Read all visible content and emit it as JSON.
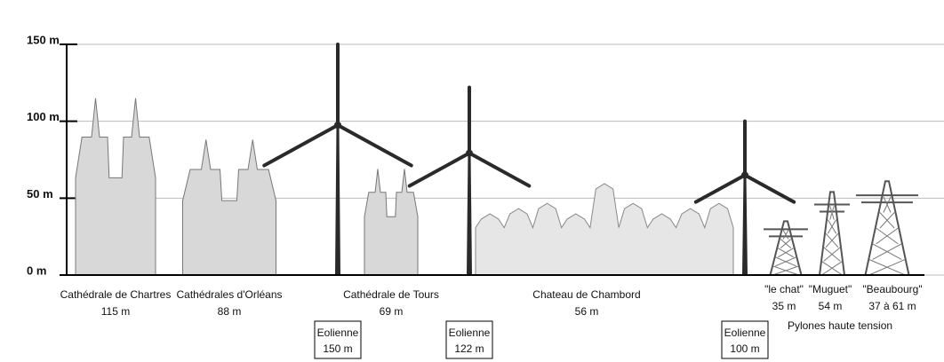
{
  "chart_data": {
    "type": "bar",
    "categories": [
      "Cathédrale de Chartres",
      "Cathédrales d'Orléans",
      "Eolienne",
      "Cathédrale  de Tours",
      "Eolienne",
      "Chateau de Chambord",
      "Eolienne",
      "\"le chat\"",
      "\"Muguet\"",
      "\"Beaubourg\""
    ],
    "values": [
      115,
      88,
      150,
      69,
      122,
      56,
      100,
      35,
      54,
      61
    ],
    "value_labels": [
      "115 m",
      "88 m",
      "150 m",
      "69 m",
      "122 m",
      "56 m",
      "100 m",
      "35 m",
      "54 m",
      "37 à 61 m"
    ],
    "group_label": "Pylones haute tension",
    "ylim": [
      0,
      150
    ],
    "yticks": [
      {
        "value": 0,
        "label": "0 m"
      },
      {
        "value": 50,
        "label": "50 m"
      },
      {
        "value": 100,
        "label": "100 m"
      },
      {
        "value": 150,
        "label": "150 m"
      }
    ],
    "grid": true
  }
}
